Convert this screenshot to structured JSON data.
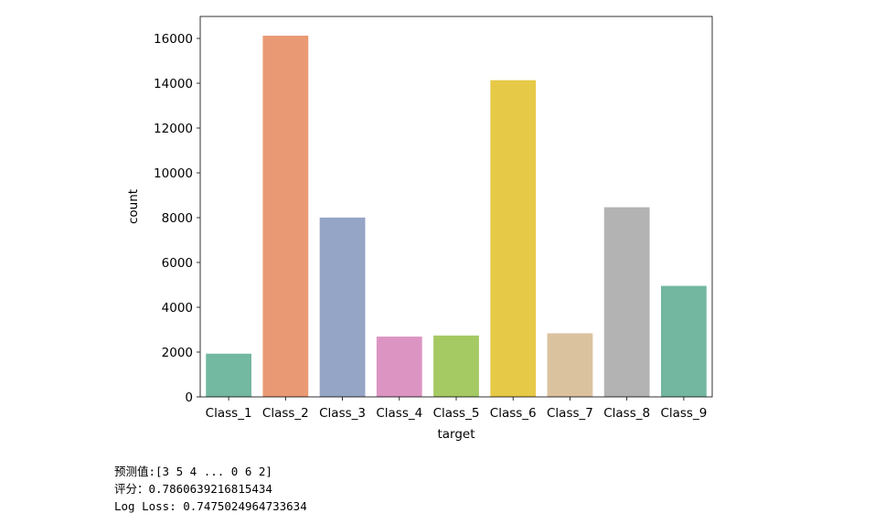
{
  "chart_data": {
    "type": "bar",
    "categories": [
      "Class_1",
      "Class_2",
      "Class_3",
      "Class_4",
      "Class_5",
      "Class_6",
      "Class_7",
      "Class_8",
      "Class_9"
    ],
    "values": [
      1929,
      16122,
      8004,
      2691,
      2739,
      14135,
      2839,
      8464,
      4955
    ],
    "colors": [
      "#73b8a0",
      "#ea9975",
      "#95a5c6",
      "#dc95c3",
      "#a5c963",
      "#e6c947",
      "#dbc29f",
      "#b3b3b3",
      "#73b7a0"
    ],
    "xlabel": "target",
    "ylabel": "count",
    "ylim": [
      0,
      16980
    ],
    "yticks": [
      0,
      2000,
      4000,
      6000,
      8000,
      10000,
      12000,
      14000,
      16000
    ],
    "grid": false
  },
  "output": {
    "line1": "预测值:[3 5 4 ... 0 6 2]",
    "line2": "评分：0.7860639216815434",
    "line3": "Log Loss: 0.7475024964733634"
  }
}
